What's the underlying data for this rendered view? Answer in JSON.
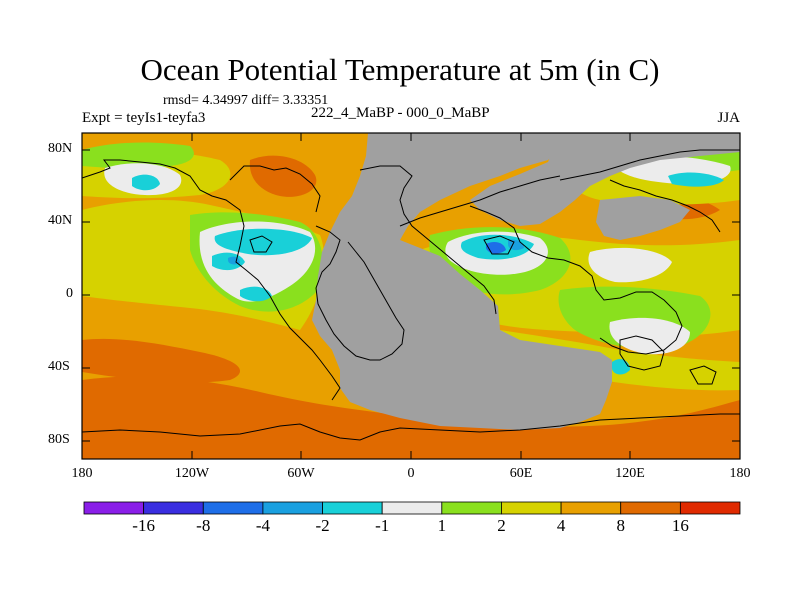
{
  "title": "Ocean Potential Temperature at 5m (in C)",
  "stats": "rmsd= 4.34997 diff= 3.33351",
  "experiment": "Expt = teyIs1-teyfa3",
  "center_label": "222_4_MaBP - 000_0_MaBP",
  "season": "JJA",
  "map": {
    "y_ticks": [
      {
        "label": "80N",
        "lat": 80
      },
      {
        "label": "40N",
        "lat": 40
      },
      {
        "label": "0",
        "lat": 0
      },
      {
        "label": "40S",
        "lat": -40
      },
      {
        "label": "80S",
        "lat": -80
      }
    ],
    "x_ticks": [
      {
        "label": "180",
        "lon": -180
      },
      {
        "label": "120W",
        "lon": -120
      },
      {
        "label": "60W",
        "lon": -60
      },
      {
        "label": "0",
        "lon": 0
      },
      {
        "label": "60E",
        "lon": 60
      },
      {
        "label": "120E",
        "lon": 120
      },
      {
        "label": "180",
        "lon": 180
      }
    ],
    "land_color": "#a0a0a0",
    "background_color": "#e8a000"
  },
  "colorbar": {
    "colors": [
      "#8a1ee8",
      "#3a2ee0",
      "#1e6ee8",
      "#1aa0e0",
      "#19d0d8",
      "#ececec",
      "#8ae01e",
      "#d6d200",
      "#e8a000",
      "#e06a00",
      "#e02a00"
    ],
    "labels": [
      "-16",
      "-8",
      "-4",
      "-2",
      "-1",
      "1",
      "2",
      "4",
      "8",
      "16"
    ]
  }
}
